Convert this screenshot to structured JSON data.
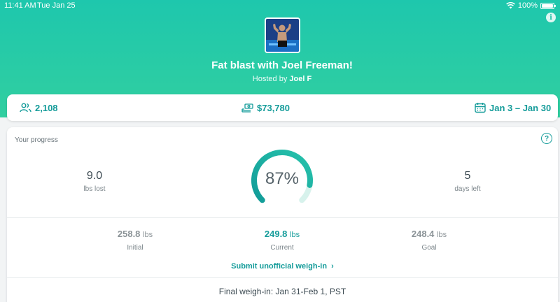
{
  "status_bar": {
    "time": "11:41 AM",
    "date": "Tue Jan 25",
    "battery": "100%"
  },
  "challenge": {
    "title": "Fat blast with Joel Freeman!",
    "hosted_by_prefix": "Hosted by",
    "host_name": "Joel F"
  },
  "stats": {
    "participants": "2,108",
    "pot": "$73,780",
    "dates": "Jan 3 – Jan 30"
  },
  "progress": {
    "label": "Your progress",
    "percent_text": "87%",
    "percent_value": 87,
    "lost_value": "9.0",
    "lost_label": "lbs lost",
    "days_value": "5",
    "days_label": "days left",
    "initial_value": "258.8",
    "initial_label": "Initial",
    "current_value": "249.8",
    "current_label": "Current",
    "goal_value": "248.4",
    "goal_label": "Goal",
    "unit": "lbs",
    "submit_label": "Submit unofficial weigh-in",
    "final_weigh_in": "Final weigh-in: Jan 31-Feb 1, PST"
  },
  "colors": {
    "accent": "#159c9a",
    "hero": "#22c7aa"
  }
}
